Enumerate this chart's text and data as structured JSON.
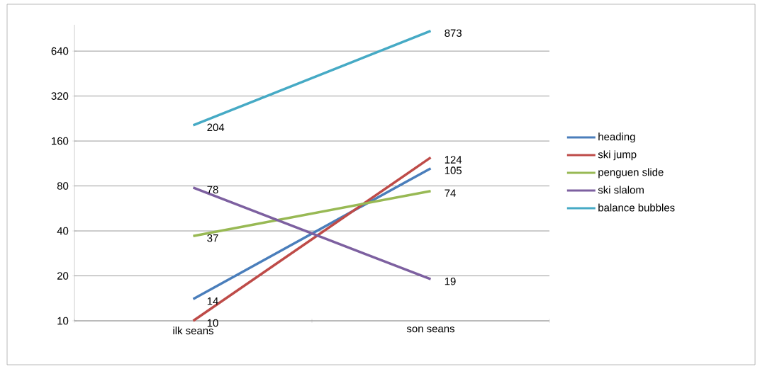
{
  "chart_data": {
    "type": "line",
    "categories": [
      "ilk seans",
      "son seans"
    ],
    "series": [
      {
        "name": "heading",
        "color": "#4a7ebb",
        "values": [
          14,
          105
        ]
      },
      {
        "name": "ski jump",
        "color": "#be4b48",
        "values": [
          10,
          124
        ]
      },
      {
        "name": "penguen slide",
        "color": "#98b954",
        "values": [
          37,
          74
        ]
      },
      {
        "name": "ski slalom",
        "color": "#7d60a0",
        "values": [
          78,
          19
        ]
      },
      {
        "name": "balance bubbles",
        "color": "#46aac5",
        "values": [
          204,
          873
        ]
      }
    ],
    "ylim": [
      10,
      960
    ],
    "yticks": [
      10,
      20,
      40,
      80,
      160,
      320,
      640
    ],
    "log": "y",
    "grid": "y",
    "legend": "right",
    "marker": "none",
    "data_labels": true
  }
}
